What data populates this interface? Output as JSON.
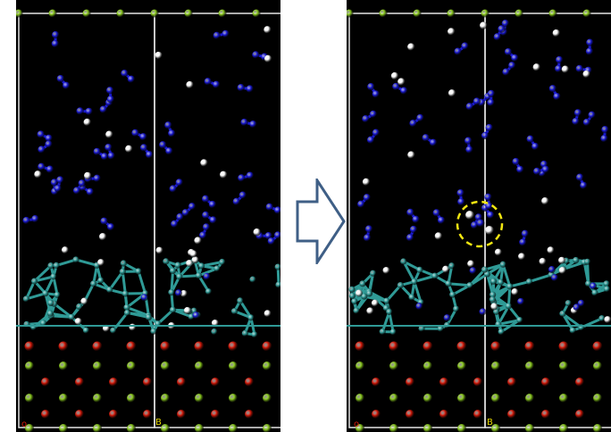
{
  "figure": {
    "panels": [
      {
        "id": "before",
        "corner_labels": {
          "o": "o",
          "b": "B"
        }
      },
      {
        "id": "after",
        "corner_labels": {
          "o": "o",
          "b": "B"
        },
        "highlight": "dashed-yellow-circle"
      }
    ],
    "arrow": "block-arrow-right",
    "colors": {
      "background": "#000000",
      "frame": "#e6e6e6",
      "nitrogen": "#1a1ad6",
      "hydrogen": "#f2f2f2",
      "metal": "#2f9a96",
      "oxygen": "#d61a0a",
      "substrate_green": "#8ccc1e",
      "highlight": "#f2e611",
      "arrow_stroke": "#3f5f86"
    }
  }
}
